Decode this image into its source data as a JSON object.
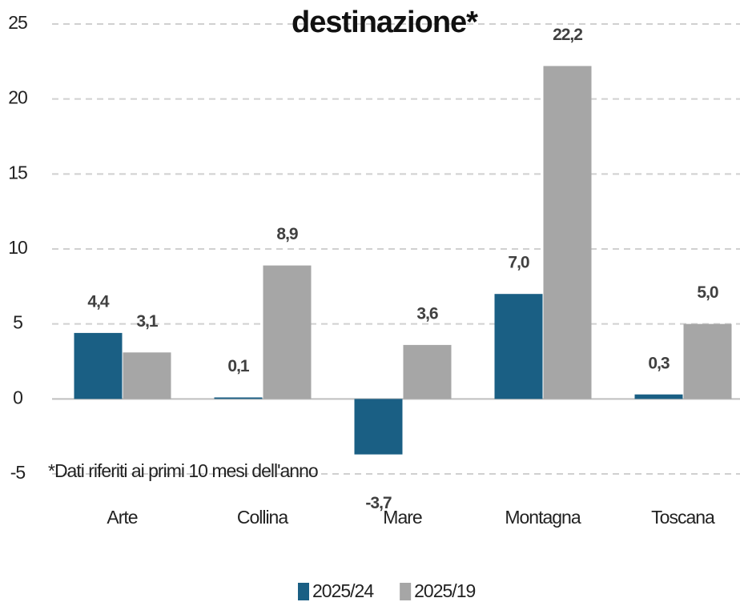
{
  "chart_data": {
    "type": "bar",
    "title": "destinazione*",
    "annotation": "*Dati riferiti ai primi 10 mesi dell'anno",
    "categories": [
      "Arte",
      "Collina",
      "Mare",
      "Montagna",
      "Toscana"
    ],
    "series": [
      {
        "name": "2025/24",
        "color": "#1a5f84",
        "values": [
          4.4,
          0.1,
          -3.7,
          7.0,
          0.3
        ],
        "value_labels": [
          "4,4",
          "0,1",
          "-3,7",
          "7,0",
          "0,3"
        ]
      },
      {
        "name": "2025/19",
        "color": "#a6a6a6",
        "values": [
          3.1,
          8.9,
          3.6,
          22.2,
          5.0
        ],
        "value_labels": [
          "3,1",
          "8,9",
          "3,6",
          "22,2",
          "5,0"
        ]
      }
    ],
    "ylim": [
      -5,
      25
    ],
    "yticks": [
      -5,
      0,
      5,
      10,
      15,
      20,
      25
    ],
    "grid": true,
    "legend": "bottom"
  }
}
